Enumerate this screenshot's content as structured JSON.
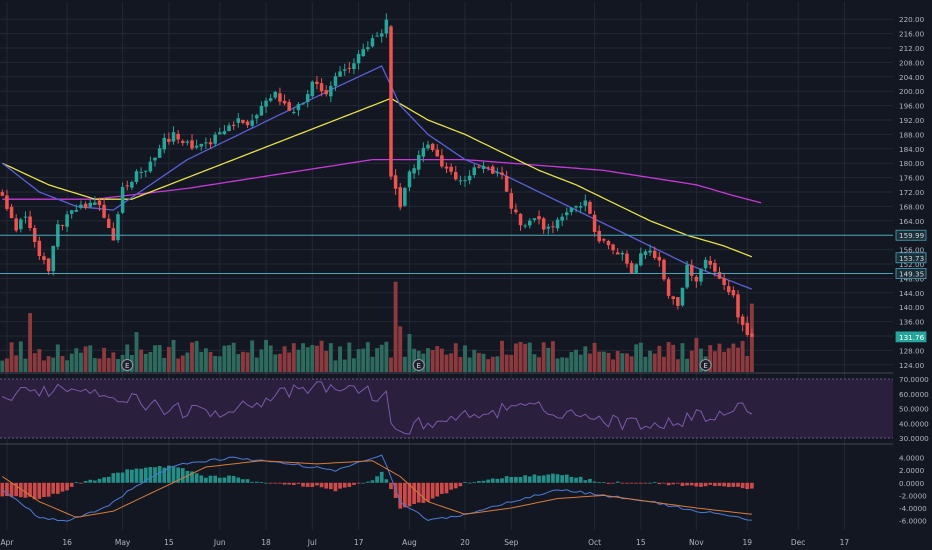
{
  "chart_data": {
    "type": "candlestick",
    "colors": {
      "background": "#131722",
      "grid": "#232834",
      "axis_text": "#b2b5be",
      "up": "#26a69a",
      "down": "#ef5350",
      "volume_up": "#2e6b5e",
      "volume_down": "#8c3a3e",
      "sma_fast": "#5b5fd6",
      "sma_mid": "#e6e04a",
      "sma_slow": "#c63ad6",
      "hline": "#4aa3b8",
      "rsi_line": "#7b5aa6",
      "rsi_band": "#2a1f3d",
      "macd_line": "#4d7bd6",
      "signal_line": "#d67a3a",
      "hist_up": "#26a69a",
      "hist_down": "#ef5350"
    },
    "price_axis": {
      "ylim": [
        122,
        222
      ],
      "ticks": [
        "220.00",
        "216.00",
        "212.00",
        "208.00",
        "204.00",
        "200.00",
        "196.00",
        "192.00",
        "188.00",
        "184.00",
        "180.00",
        "176.00",
        "172.00",
        "168.00",
        "164.00",
        "160.00",
        "156.00",
        "152.00",
        "148.00",
        "144.00",
        "140.00",
        "136.00",
        "132.00",
        "128.00",
        "124.00"
      ]
    },
    "price_labels": [
      {
        "text": "159.99",
        "value": 159.99
      },
      {
        "text": "153.73",
        "value": 153.73
      },
      {
        "text": "149.35",
        "value": 149.35
      },
      {
        "text": "131.76",
        "value": 131.76
      }
    ],
    "hlines": [
      159.99,
      149.35
    ],
    "x_axis": {
      "n_bars": 163,
      "ticks": [
        {
          "label": "Apr",
          "bar": 1
        },
        {
          "label": "16",
          "bar": 14
        },
        {
          "label": "May",
          "bar": 26
        },
        {
          "label": "15",
          "bar": 36
        },
        {
          "label": "Jun",
          "bar": 47
        },
        {
          "label": "18",
          "bar": 57
        },
        {
          "label": "Jul",
          "bar": 67
        },
        {
          "label": "17",
          "bar": 77
        },
        {
          "label": "Aug",
          "bar": 88
        },
        {
          "label": "20",
          "bar": 100
        },
        {
          "label": "Sep",
          "bar": 110
        },
        {
          "label": "Oct",
          "bar": 128
        },
        {
          "label": "15",
          "bar": 138
        },
        {
          "label": "Nov",
          "bar": 150
        },
        {
          "label": "19",
          "bar": 161
        },
        {
          "label": "Dec",
          "bar": 172
        },
        {
          "label": "17",
          "bar": 182
        }
      ]
    },
    "close_anchors": [
      [
        0,
        172
      ],
      [
        3,
        161
      ],
      [
        5,
        166
      ],
      [
        8,
        154
      ],
      [
        10,
        151
      ],
      [
        12,
        162
      ],
      [
        15,
        167
      ],
      [
        19,
        168
      ],
      [
        21,
        168
      ],
      [
        24,
        159
      ],
      [
        26,
        173
      ],
      [
        29,
        177
      ],
      [
        31,
        179
      ],
      [
        33,
        182
      ],
      [
        35,
        186
      ],
      [
        37,
        188
      ],
      [
        39,
        186
      ],
      [
        41,
        184
      ],
      [
        45,
        186
      ],
      [
        48,
        189
      ],
      [
        51,
        192
      ],
      [
        53,
        190
      ],
      [
        56,
        196
      ],
      [
        59,
        199
      ],
      [
        62,
        194
      ],
      [
        65,
        197
      ],
      [
        67,
        202
      ],
      [
        70,
        200
      ],
      [
        73,
        205
      ],
      [
        76,
        208
      ],
      [
        78,
        211
      ],
      [
        80,
        214
      ],
      [
        82,
        216
      ],
      [
        83,
        219
      ],
      [
        84,
        176
      ],
      [
        86,
        168
      ],
      [
        88,
        177
      ],
      [
        90,
        182
      ],
      [
        92,
        186
      ],
      [
        94,
        181
      ],
      [
        96,
        179
      ],
      [
        98,
        175
      ],
      [
        100,
        176
      ],
      [
        103,
        179
      ],
      [
        106,
        178
      ],
      [
        108,
        176
      ],
      [
        110,
        168
      ],
      [
        112,
        163
      ],
      [
        115,
        164
      ],
      [
        118,
        162
      ],
      [
        121,
        166
      ],
      [
        124,
        167
      ],
      [
        126,
        170
      ],
      [
        128,
        160
      ],
      [
        130,
        158
      ],
      [
        132,
        156
      ],
      [
        134,
        154
      ],
      [
        136,
        149
      ],
      [
        138,
        155
      ],
      [
        140,
        156
      ],
      [
        142,
        152
      ],
      [
        144,
        144
      ],
      [
        146,
        140
      ],
      [
        148,
        151
      ],
      [
        150,
        148
      ],
      [
        152,
        153
      ],
      [
        154,
        150
      ],
      [
        156,
        146
      ],
      [
        158,
        143
      ],
      [
        159,
        138
      ],
      [
        161,
        133
      ],
      [
        162,
        131.76
      ]
    ],
    "sma_fast_anchors": [
      [
        0,
        180
      ],
      [
        8,
        172
      ],
      [
        16,
        168
      ],
      [
        24,
        167
      ],
      [
        32,
        174
      ],
      [
        40,
        181
      ],
      [
        48,
        186
      ],
      [
        56,
        191
      ],
      [
        64,
        196
      ],
      [
        72,
        201
      ],
      [
        82,
        207
      ],
      [
        86,
        196
      ],
      [
        92,
        188
      ],
      [
        100,
        181
      ],
      [
        108,
        177
      ],
      [
        116,
        172
      ],
      [
        124,
        167
      ],
      [
        132,
        162
      ],
      [
        140,
        157
      ],
      [
        148,
        152
      ],
      [
        156,
        148
      ],
      [
        162,
        145
      ]
    ],
    "sma_mid_anchors": [
      [
        0,
        180
      ],
      [
        10,
        174
      ],
      [
        20,
        170
      ],
      [
        28,
        170
      ],
      [
        36,
        174
      ],
      [
        46,
        179
      ],
      [
        56,
        184
      ],
      [
        66,
        189
      ],
      [
        76,
        194
      ],
      [
        84,
        198
      ],
      [
        92,
        192
      ],
      [
        100,
        188
      ],
      [
        108,
        183
      ],
      [
        116,
        178
      ],
      [
        124,
        174
      ],
      [
        132,
        169
      ],
      [
        140,
        164
      ],
      [
        148,
        160
      ],
      [
        156,
        157
      ],
      [
        162,
        154
      ]
    ],
    "sma_slow_anchors": [
      [
        0,
        170
      ],
      [
        20,
        170
      ],
      [
        40,
        173
      ],
      [
        60,
        177
      ],
      [
        80,
        181
      ],
      [
        90,
        181
      ],
      [
        100,
        181
      ],
      [
        110,
        180
      ],
      [
        120,
        179
      ],
      [
        130,
        178
      ],
      [
        140,
        176
      ],
      [
        150,
        174
      ],
      [
        158,
        171
      ],
      [
        164,
        169
      ]
    ],
    "volume_spikes": {
      "6": 0.62,
      "29": 0.42,
      "85": 0.95,
      "86": 0.48,
      "88": 0.4,
      "111": 0.3,
      "150": 0.36,
      "162": 0.72,
      "163": 0.4
    },
    "earnings_markers": [
      {
        "text": "E",
        "bar": 27
      },
      {
        "text": "E",
        "bar": 90
      },
      {
        "text": "E",
        "bar": 152
      }
    ],
    "rsi": {
      "ylim": [
        30,
        70
      ],
      "ticks": [
        "70.0000",
        "60.0000",
        "50.0000",
        "40.0000",
        "30.0000"
      ],
      "band": [
        30,
        70
      ]
    },
    "macd": {
      "ylim": [
        -7.5,
        6
      ],
      "ticks": [
        "4.0000",
        "2.0000",
        "0.0000",
        "-2.0000",
        "-4.0000",
        "-6.0000"
      ]
    }
  }
}
